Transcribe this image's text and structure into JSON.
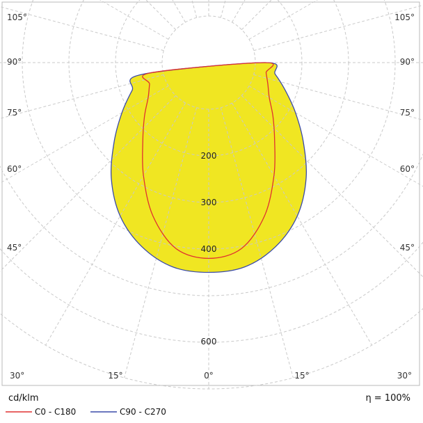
{
  "chart_data": {
    "type": "polar",
    "unit_label": "cd/klm",
    "efficiency_label": "η = 100%",
    "radial_range": [
      0,
      700
    ],
    "grid": true,
    "ring_ticks": [
      {
        "value": 100,
        "label": ""
      },
      {
        "value": 200,
        "label": "200"
      },
      {
        "value": 300,
        "label": "300"
      },
      {
        "value": 400,
        "label": "400"
      },
      {
        "value": 500,
        "label": ""
      },
      {
        "value": 600,
        "label": "600"
      },
      {
        "value": 700,
        "label": ""
      }
    ],
    "angle_labels_left": [
      "105°",
      "90°",
      "75°",
      "60°",
      "45°",
      "30°",
      "15°"
    ],
    "angle_labels_right": [
      "105°",
      "90°",
      "75°",
      "60°",
      "45°",
      "30°",
      "15°"
    ],
    "angle_label_bottom": "0°",
    "fill_color": "#f0e622",
    "series": [
      {
        "name": "C0 - C180",
        "color": "#e03030",
        "points": [
          {
            "angle": 0,
            "value": 420
          },
          {
            "angle": 10,
            "value": 405
          },
          {
            "angle": 20,
            "value": 350
          },
          {
            "angle": 30,
            "value": 280
          },
          {
            "angle": 40,
            "value": 220
          },
          {
            "angle": 50,
            "value": 180
          },
          {
            "angle": 60,
            "value": 150
          },
          {
            "angle": 70,
            "value": 135
          },
          {
            "angle": 80,
            "value": 125
          },
          {
            "angle": 90,
            "value": 120
          }
        ]
      },
      {
        "name": "C90 - C270",
        "color": "#3a4aa8",
        "points": [
          {
            "angle": 0,
            "value": 450
          },
          {
            "angle": 10,
            "value": 445
          },
          {
            "angle": 20,
            "value": 420
          },
          {
            "angle": 30,
            "value": 380
          },
          {
            "angle": 40,
            "value": 325
          },
          {
            "angle": 50,
            "value": 265
          },
          {
            "angle": 60,
            "value": 215
          },
          {
            "angle": 70,
            "value": 175
          },
          {
            "angle": 80,
            "value": 145
          },
          {
            "angle": 90,
            "value": 120
          }
        ]
      }
    ]
  }
}
